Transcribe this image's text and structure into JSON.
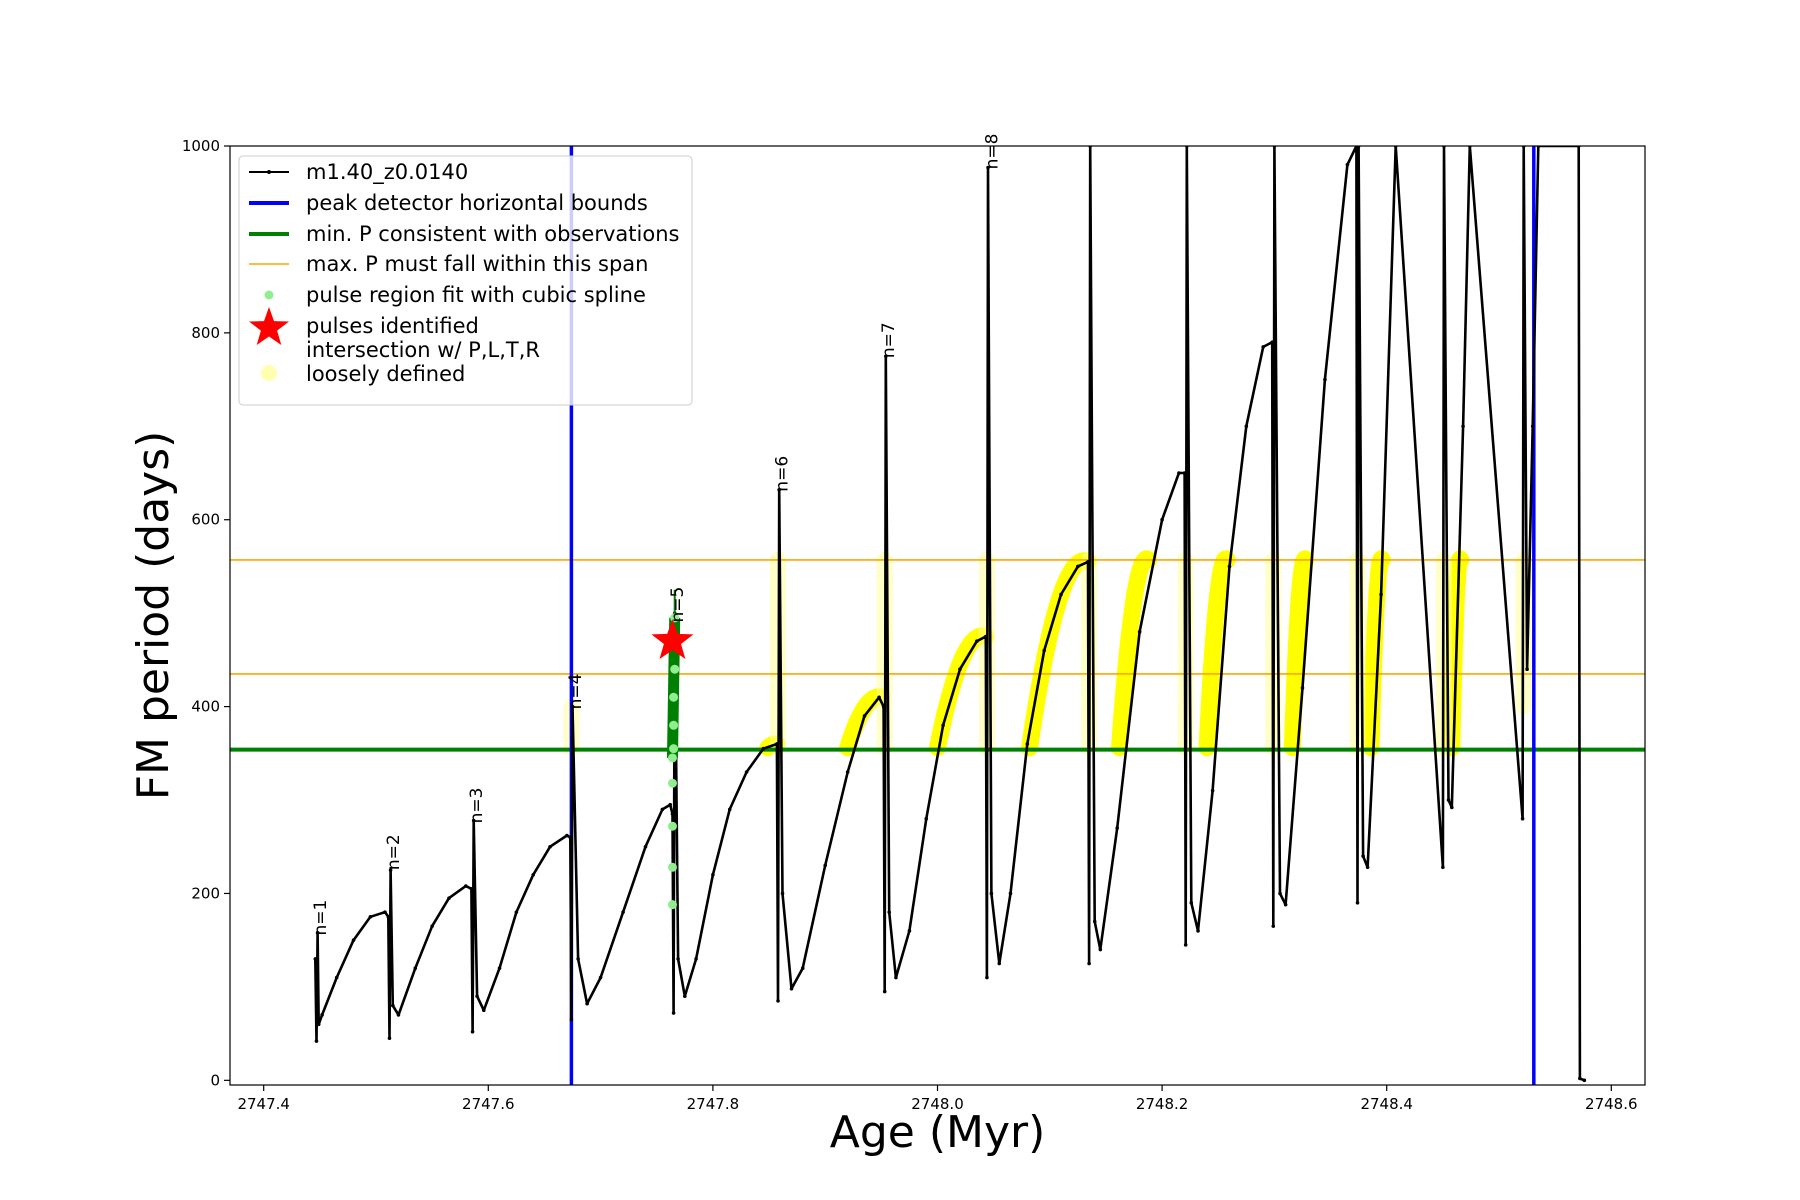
{
  "chart_data": {
    "type": "line",
    "xlabel": "Age (Myr)",
    "ylabel": "FM period (days)",
    "xlim": [
      2747.37,
      2748.63
    ],
    "ylim": [
      -5,
      1000
    ],
    "x_ticks": [
      2747.4,
      2747.6,
      2747.8,
      2748.0,
      2748.2,
      2748.4,
      2748.6
    ],
    "x_tick_labels": [
      "2747.4",
      "2747.6",
      "2747.8",
      "2748.0",
      "2748.2",
      "2748.4",
      "2748.6"
    ],
    "y_ticks": [
      0,
      200,
      400,
      600,
      800,
      1000
    ],
    "y_tick_labels": [
      "0",
      "200",
      "400",
      "600",
      "800",
      "1000"
    ],
    "legend_position": "upper-left",
    "legend": [
      {
        "label": "m1.40_z0.0140",
        "style": "line-dot",
        "color": "#000000"
      },
      {
        "label": "peak detector horizontal bounds",
        "style": "thick-line",
        "color": "#0000ff"
      },
      {
        "label": "min. P consistent with observations",
        "style": "thick-line",
        "color": "#008000"
      },
      {
        "label": "max. P must fall within this span",
        "style": "thin-line",
        "color": "#ffa500"
      },
      {
        "label": "pulse region fit with cubic spline",
        "style": "dot",
        "color": "#90ee90"
      },
      {
        "label": "pulses identified",
        "style": "star",
        "color": "#ff0000"
      },
      {
        "label": "intersection w/ P,L,T,R",
        "label2": "loosely defined",
        "style": "big-dot",
        "color": "#ffffb0"
      }
    ],
    "series": [
      {
        "name": "m1.40_z0.0140",
        "color": "#000000",
        "points": [
          [
            2747.446,
            130
          ],
          [
            2747.447,
            42
          ],
          [
            2747.448,
            158
          ],
          [
            2747.449,
            60
          ],
          [
            2747.452,
            70
          ],
          [
            2747.465,
            110
          ],
          [
            2747.48,
            150
          ],
          [
            2747.495,
            175
          ],
          [
            2747.508,
            180
          ],
          [
            2747.511,
            175
          ],
          [
            2747.512,
            45
          ],
          [
            2747.513,
            225
          ],
          [
            2747.515,
            80
          ],
          [
            2747.52,
            70
          ],
          [
            2747.535,
            120
          ],
          [
            2747.55,
            165
          ],
          [
            2747.565,
            195
          ],
          [
            2747.58,
            208
          ],
          [
            2747.585,
            205
          ],
          [
            2747.586,
            52
          ],
          [
            2747.587,
            278
          ],
          [
            2747.59,
            90
          ],
          [
            2747.596,
            75
          ],
          [
            2747.61,
            120
          ],
          [
            2747.625,
            180
          ],
          [
            2747.64,
            220
          ],
          [
            2747.655,
            250
          ],
          [
            2747.67,
            262
          ],
          [
            2747.673,
            260
          ],
          [
            2747.674,
            65
          ],
          [
            2747.675,
            400
          ],
          [
            2747.68,
            130
          ],
          [
            2747.688,
            82
          ],
          [
            2747.7,
            110
          ],
          [
            2747.72,
            180
          ],
          [
            2747.74,
            250
          ],
          [
            2747.755,
            290
          ],
          [
            2747.762,
            295
          ],
          [
            2747.764,
            285
          ],
          [
            2747.765,
            72
          ],
          [
            2747.766,
            500
          ],
          [
            2747.769,
            130
          ],
          [
            2747.775,
            90
          ],
          [
            2747.785,
            130
          ],
          [
            2747.8,
            220
          ],
          [
            2747.815,
            290
          ],
          [
            2747.83,
            330
          ],
          [
            2747.845,
            355
          ],
          [
            2747.857,
            360
          ],
          [
            2747.858,
            85
          ],
          [
            2747.859,
            632
          ],
          [
            2747.862,
            200
          ],
          [
            2747.87,
            98
          ],
          [
            2747.88,
            120
          ],
          [
            2747.9,
            230
          ],
          [
            2747.92,
            330
          ],
          [
            2747.935,
            390
          ],
          [
            2747.948,
            410
          ],
          [
            2747.952,
            400
          ],
          [
            2747.953,
            95
          ],
          [
            2747.954,
            775
          ],
          [
            2747.957,
            180
          ],
          [
            2747.963,
            110
          ],
          [
            2747.975,
            160
          ],
          [
            2747.99,
            280
          ],
          [
            2748.005,
            380
          ],
          [
            2748.02,
            440
          ],
          [
            2748.035,
            470
          ],
          [
            2748.043,
            475
          ],
          [
            2748.044,
            110
          ],
          [
            2748.045,
            977
          ],
          [
            2748.048,
            200
          ],
          [
            2748.055,
            125
          ],
          [
            2748.065,
            200
          ],
          [
            2748.08,
            360
          ],
          [
            2748.095,
            460
          ],
          [
            2748.11,
            520
          ],
          [
            2748.125,
            550
          ],
          [
            2748.134,
            555
          ],
          [
            2748.135,
            125
          ],
          [
            2748.136,
            1000
          ],
          [
            2748.14,
            170
          ],
          [
            2748.145,
            140
          ],
          [
            2748.16,
            270
          ],
          [
            2748.18,
            480
          ],
          [
            2748.2,
            600
          ],
          [
            2748.215,
            650
          ],
          [
            2748.22,
            650
          ],
          [
            2748.221,
            145
          ],
          [
            2748.222,
            1000
          ],
          [
            2748.226,
            190
          ],
          [
            2748.232,
            160
          ],
          [
            2748.245,
            310
          ],
          [
            2748.26,
            550
          ],
          [
            2748.275,
            700
          ],
          [
            2748.29,
            785
          ],
          [
            2748.298,
            790
          ],
          [
            2748.299,
            165
          ],
          [
            2748.3,
            1000
          ],
          [
            2748.305,
            200
          ],
          [
            2748.31,
            188
          ],
          [
            2748.325,
            420
          ],
          [
            2748.345,
            750
          ],
          [
            2748.365,
            980
          ],
          [
            2748.373,
            1000
          ],
          [
            2748.374,
            190
          ],
          [
            2748.375,
            1000
          ],
          [
            2748.379,
            240
          ],
          [
            2748.383,
            228
          ],
          [
            2748.395,
            520
          ],
          [
            2748.408,
            1000
          ],
          [
            2748.45,
            228
          ],
          [
            2748.451,
            1000
          ],
          [
            2748.455,
            300
          ],
          [
            2748.458,
            292
          ],
          [
            2748.468,
            700
          ],
          [
            2748.474,
            1000
          ],
          [
            2748.521,
            280
          ],
          [
            2748.522,
            1000
          ],
          [
            2748.525,
            440
          ],
          [
            2748.53,
            700
          ],
          [
            2748.535,
            1000
          ],
          [
            2748.571,
            1000
          ],
          [
            2748.572,
            2
          ],
          [
            2748.576,
            0
          ]
        ]
      }
    ],
    "vertical_lines": [
      {
        "x": 2747.674,
        "color": "#0000ff"
      },
      {
        "x": 2748.531,
        "color": "#0000ff"
      }
    ],
    "horizontal_lines": [
      {
        "y": 354,
        "color": "#008000"
      },
      {
        "y": 435,
        "color": "#ffa500"
      },
      {
        "y": 557,
        "color": "#ffa500"
      }
    ],
    "pulse_labels": [
      {
        "text": "n=1",
        "x": 2747.45,
        "y": 155
      },
      {
        "text": "n=2",
        "x": 2747.515,
        "y": 225
      },
      {
        "text": "n=3",
        "x": 2747.589,
        "y": 275
      },
      {
        "text": "n=4",
        "x": 2747.677,
        "y": 397
      },
      {
        "text": "n=5",
        "x": 2747.768,
        "y": 490
      },
      {
        "text": "n=6",
        "x": 2747.861,
        "y": 630
      },
      {
        "text": "n=7",
        "x": 2747.956,
        "y": 773
      },
      {
        "text": "n=8",
        "x": 2748.048,
        "y": 975
      }
    ],
    "spline_fit_points": [
      [
        2747.764,
        188
      ],
      [
        2747.764,
        228
      ],
      [
        2747.764,
        272
      ],
      [
        2747.764,
        318
      ],
      [
        2747.764,
        345
      ],
      [
        2747.765,
        355
      ],
      [
        2747.765,
        380
      ],
      [
        2747.765,
        410
      ],
      [
        2747.766,
        440
      ],
      [
        2747.766,
        470
      ],
      [
        2747.766,
        495
      ]
    ],
    "pulses_identified": [
      {
        "x": 2747.764,
        "y": 470
      }
    ],
    "intersection_segments": [
      {
        "x0": 2747.849,
        "x1": 2747.857,
        "y0": 356,
        "y1": 360
      },
      {
        "x0": 2747.92,
        "x1": 2747.95,
        "y0": 356,
        "y1": 410
      },
      {
        "x0": 2748.0,
        "x1": 2748.043,
        "y0": 356,
        "y1": 475
      },
      {
        "x0": 2748.082,
        "x1": 2748.134,
        "y0": 356,
        "y1": 555
      },
      {
        "x0": 2748.162,
        "x1": 2748.188,
        "y0": 356,
        "y1": 557
      },
      {
        "x0": 2748.24,
        "x1": 2748.258,
        "y0": 356,
        "y1": 557
      },
      {
        "x0": 2748.316,
        "x1": 2748.328,
        "y0": 356,
        "y1": 557
      },
      {
        "x0": 2748.386,
        "x1": 2748.396,
        "y0": 356,
        "y1": 557
      },
      {
        "x0": 2748.458,
        "x1": 2748.466,
        "y0": 356,
        "y1": 557
      }
    ],
    "loose_intersection_bands": [
      {
        "x": 2747.674,
        "y0": 356,
        "y1": 400
      },
      {
        "x": 2747.858,
        "y0": 356,
        "y1": 557
      },
      {
        "x": 2747.953,
        "y0": 356,
        "y1": 557
      },
      {
        "x": 2748.044,
        "y0": 356,
        "y1": 557
      },
      {
        "x": 2748.135,
        "y0": 356,
        "y1": 557
      },
      {
        "x": 2748.221,
        "y0": 356,
        "y1": 557
      },
      {
        "x": 2748.299,
        "y0": 356,
        "y1": 557
      },
      {
        "x": 2748.374,
        "y0": 356,
        "y1": 557
      },
      {
        "x": 2748.451,
        "y0": 356,
        "y1": 557
      },
      {
        "x": 2748.522,
        "y0": 400,
        "y1": 557
      }
    ]
  }
}
